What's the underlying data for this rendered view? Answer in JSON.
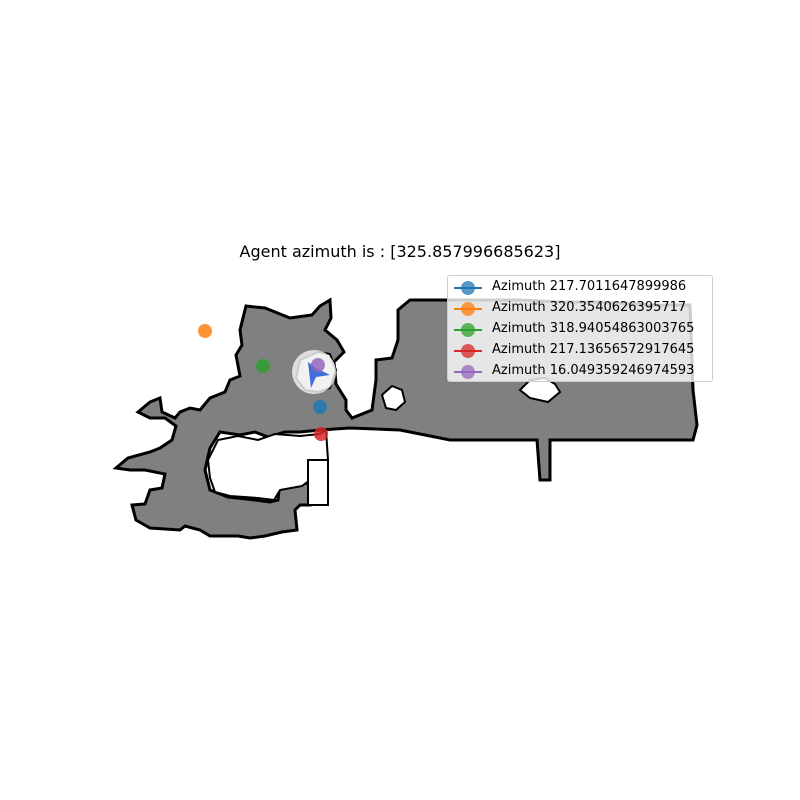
{
  "title": "Agent azimuth is : [325.857996685623]",
  "map": {
    "floor_color": "#808080",
    "wall_color": "#000000",
    "agent_marker_color": "#3d6fd8",
    "agent_halo_color": "#eeeeee"
  },
  "legend": [
    {
      "label": "Azimuth 217.7011647899986",
      "color": "#1f77b4"
    },
    {
      "label": "Azimuth 320.3540626395717",
      "color": "#ff7f0e"
    },
    {
      "label": "Azimuth 318.94054863003765",
      "color": "#2ca02c"
    },
    {
      "label": "Azimuth 217.13656572917645",
      "color": "#d62728"
    },
    {
      "label": "Azimuth 16.049359246974593",
      "color": "#9467bd"
    }
  ]
}
